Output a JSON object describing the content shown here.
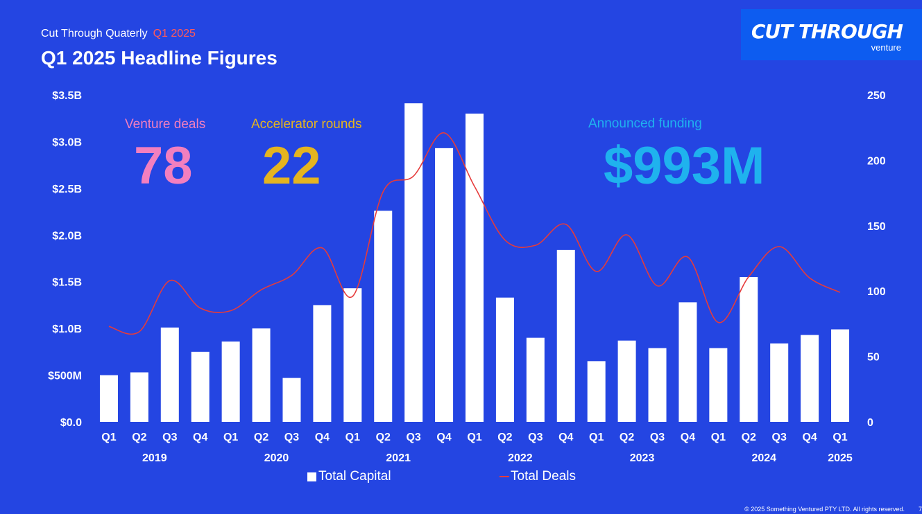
{
  "header": {
    "subtitle": "Cut Through Quaterly",
    "quarter": "Q1 2025",
    "title": "Q1 2025 Headline Figures"
  },
  "logo": {
    "main": "CUT THROUGH",
    "sub": "venture"
  },
  "stats": {
    "venture_deals": {
      "label": "Venture deals",
      "value": "78",
      "color": "#f27fbf"
    },
    "accelerator_rounds": {
      "label": "Accelerator rounds",
      "value": "22",
      "color": "#e5b41f"
    },
    "announced_funding": {
      "label": "Announced funding",
      "value": "$993M",
      "color": "#1fb2ee"
    }
  },
  "legend": {
    "capital": "Total Capital",
    "deals": "Total Deals"
  },
  "footer": {
    "copyright": "© 2025 Something Ventured PTY LTD. All rights reserved.",
    "page": "7"
  },
  "colors": {
    "background": "#2445e2",
    "bars": "#ffffff",
    "line": "#e63b3b"
  },
  "chart_data": {
    "type": "bar",
    "categories": [
      "Q1",
      "Q2",
      "Q3",
      "Q4",
      "Q1",
      "Q2",
      "Q3",
      "Q4",
      "Q1",
      "Q2",
      "Q3",
      "Q4",
      "Q1",
      "Q2",
      "Q3",
      "Q4",
      "Q1",
      "Q2",
      "Q3",
      "Q4",
      "Q1",
      "Q2",
      "Q3",
      "Q4",
      "Q1"
    ],
    "years": [
      "2019",
      "2020",
      "2021",
      "2022",
      "2023",
      "2024",
      "2025"
    ],
    "series": [
      {
        "name": "Total Capital",
        "type": "bar",
        "axis": "left",
        "values": [
          0.5,
          0.53,
          1.01,
          0.75,
          0.86,
          1.0,
          0.47,
          1.25,
          1.43,
          2.26,
          3.41,
          2.93,
          3.3,
          1.33,
          0.9,
          1.84,
          0.65,
          0.87,
          0.79,
          1.28,
          0.79,
          1.55,
          0.84,
          0.93,
          0.99
        ]
      },
      {
        "name": "Total Deals",
        "type": "line",
        "axis": "right",
        "values": [
          73,
          69,
          108,
          87,
          85,
          101,
          112,
          133,
          96,
          176,
          188,
          221,
          180,
          139,
          135,
          151,
          115,
          143,
          104,
          126,
          76,
          111,
          134,
          110,
          99
        ]
      }
    ],
    "yleft": {
      "ticks": [
        "$0.0",
        "$500M",
        "$1.0B",
        "$1.5B",
        "$2.0B",
        "$2.5B",
        "$3.0B",
        "$3.5B"
      ],
      "ylim": [
        0,
        3.5
      ]
    },
    "yright": {
      "ticks": [
        "0",
        "50",
        "100",
        "150",
        "200",
        "250"
      ],
      "ylim": [
        0,
        250
      ]
    },
    "grid": false,
    "legend_position": "bottom"
  }
}
